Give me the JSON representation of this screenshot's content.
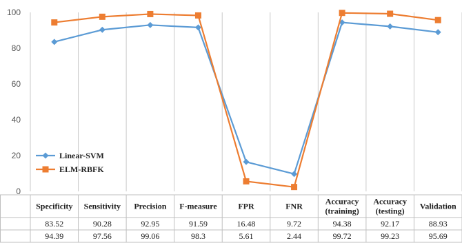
{
  "chart_data": {
    "type": "line",
    "categories": [
      "Specificity",
      "Sensitivity",
      "Precision",
      "F-measure",
      "FPR",
      "FNR",
      "Accuracy (training)",
      "Accuracy (testing)",
      "Validation"
    ],
    "category_lines": [
      [
        "Specificity"
      ],
      [
        "Sensitivity"
      ],
      [
        "Precision"
      ],
      [
        "F-measure"
      ],
      [
        "FPR"
      ],
      [
        "FNR"
      ],
      [
        "Accuracy",
        "(training)"
      ],
      [
        "Accuracy",
        "(testing)"
      ],
      [
        "Validation"
      ]
    ],
    "series": [
      {
        "name": "Linear-SVM",
        "color": "#5B9BD5",
        "marker": "diamond",
        "values": [
          83.52,
          90.28,
          92.95,
          91.59,
          16.48,
          9.72,
          94.38,
          92.17,
          88.93
        ],
        "labels": [
          "83.52",
          "90.28",
          "92.95",
          "91.59",
          "16.48",
          "9.72",
          "94.38",
          "92.17",
          "88.93"
        ]
      },
      {
        "name": "ELM-RBFK",
        "color": "#ED7D31",
        "marker": "square",
        "values": [
          94.39,
          97.56,
          99.06,
          98.3,
          5.61,
          2.44,
          99.72,
          99.23,
          95.69
        ],
        "labels": [
          "94.39",
          "97.56",
          "99.06",
          "98.3",
          "5.61",
          "2.44",
          "99.72",
          "99.23",
          "95.69"
        ]
      }
    ],
    "yticks": [
      "0",
      "20",
      "40",
      "60",
      "80",
      "100"
    ],
    "ylim": [
      0,
      100
    ],
    "grid": "vertical",
    "legend": "lower-left",
    "data_table": true
  }
}
